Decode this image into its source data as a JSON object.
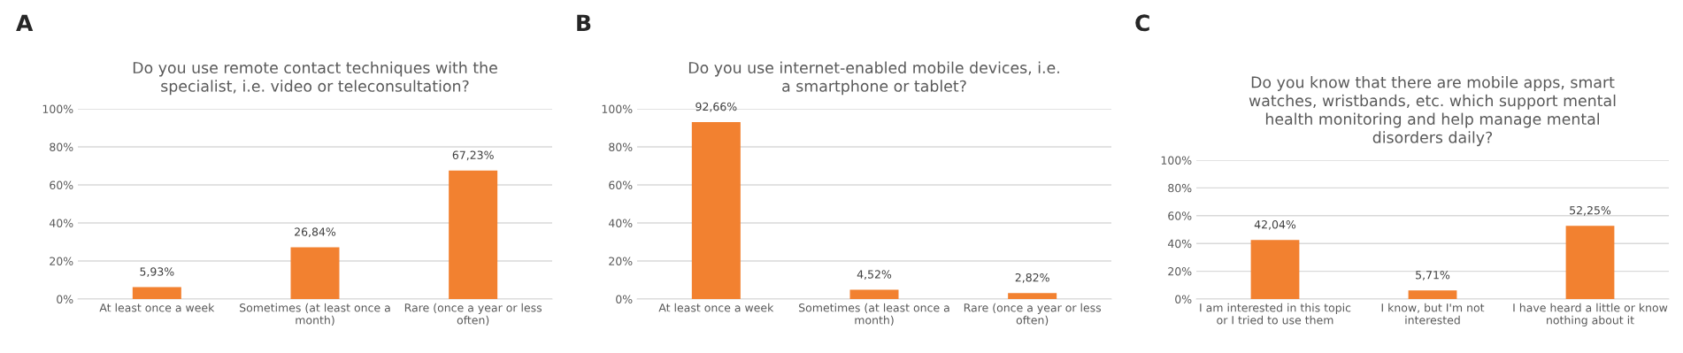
{
  "chart_data": [
    {
      "type": "bar",
      "annotations": [
        "A"
      ],
      "title": "Do you use remote contact techniques with the\nspecialist, i.e. video or teleconsultation?",
      "categories": [
        "At least once a week",
        "Sometimes (at least once a\nmonth)",
        "Rare (once a year or less\noften)"
      ],
      "values": [
        5.93,
        26.84,
        67.23
      ],
      "value_labels": [
        "5,93%",
        "26,84%",
        "67,23%"
      ],
      "color": "#f28130",
      "ylim": [
        0,
        100
      ],
      "yticks": [
        {
          "value": 0,
          "label": "0%"
        },
        {
          "value": 20,
          "label": "20%"
        },
        {
          "value": 40,
          "label": "40%"
        },
        {
          "value": 60,
          "label": "60%"
        },
        {
          "value": 80,
          "label": "80%"
        },
        {
          "value": 100,
          "label": "100%"
        }
      ],
      "grid": "y"
    },
    {
      "type": "bar",
      "annotations": [
        "B"
      ],
      "title": "Do you use internet-enabled mobile devices, i.e.\na smartphone or tablet?",
      "categories": [
        "At least once a week",
        "Sometimes (at least once a\nmonth)",
        "Rare (once a year or less\noften)"
      ],
      "values": [
        92.66,
        4.52,
        2.82
      ],
      "value_labels": [
        "92,66%",
        "4,52%",
        "2,82%"
      ],
      "color": "#f28130",
      "ylim": [
        0,
        100
      ],
      "yticks": [
        {
          "value": 0,
          "label": "0%"
        },
        {
          "value": 20,
          "label": "20%"
        },
        {
          "value": 40,
          "label": "40%"
        },
        {
          "value": 60,
          "label": "60%"
        },
        {
          "value": 80,
          "label": "80%"
        },
        {
          "value": 100,
          "label": "100%"
        }
      ],
      "grid": "y"
    },
    {
      "type": "bar",
      "annotations": [
        "C"
      ],
      "title": "Do you know that there are mobile apps, smart\nwatches, wristbands, etc. which support mental\nhealth monitoring and help manage mental\ndisorders daily?",
      "categories": [
        "I am interested in this topic\nor I tried to use them",
        "I know, but I'm not\ninterested",
        "I have heard a little or know\nnothing about it"
      ],
      "values": [
        42.04,
        5.71,
        52.25
      ],
      "value_labels": [
        "42,04%",
        "5,71%",
        "52,25%"
      ],
      "color": "#f28130",
      "ylim": [
        0,
        100
      ],
      "yticks": [
        {
          "value": 0,
          "label": "0%"
        },
        {
          "value": 20,
          "label": "20%"
        },
        {
          "value": 40,
          "label": "40%"
        },
        {
          "value": 60,
          "label": "60%"
        },
        {
          "value": 80,
          "label": "80%"
        },
        {
          "value": 100,
          "label": "100%"
        }
      ],
      "grid": "y"
    }
  ]
}
